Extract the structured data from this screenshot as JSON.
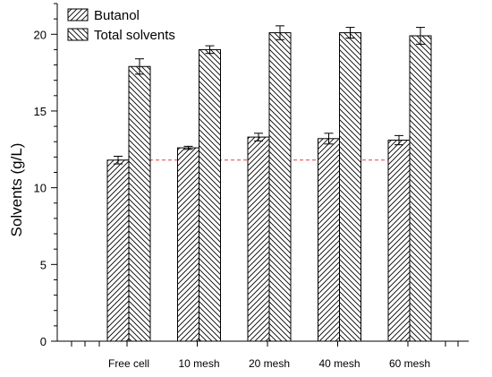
{
  "chart_data": {
    "type": "bar",
    "title": "",
    "xlabel": "",
    "ylabel": "Solvents  (g/L)",
    "ylim": [
      0,
      22
    ],
    "yticks": [
      0,
      5,
      10,
      15,
      20
    ],
    "categories": [
      "Free cell",
      "10 mesh",
      "20 mesh",
      "40 mesh",
      "60 mesh"
    ],
    "series": [
      {
        "name": "Butanol",
        "values": [
          11.8,
          12.6,
          13.3,
          13.2,
          13.1
        ],
        "errors": [
          0.25,
          0.1,
          0.25,
          0.35,
          0.3
        ],
        "pattern": "hatch-forward"
      },
      {
        "name": "Total solvents",
        "values": [
          17.9,
          19.0,
          20.1,
          20.1,
          19.9
        ],
        "errors": [
          0.5,
          0.25,
          0.45,
          0.35,
          0.55
        ],
        "pattern": "hatch-backward"
      }
    ],
    "reference_line": {
      "value": 11.8,
      "color": "#e8413a",
      "style": "dashed"
    },
    "legend": {
      "position": "top-left"
    },
    "grid": false,
    "bar_fill": "#ffffff",
    "bar_stroke": "#000000"
  }
}
